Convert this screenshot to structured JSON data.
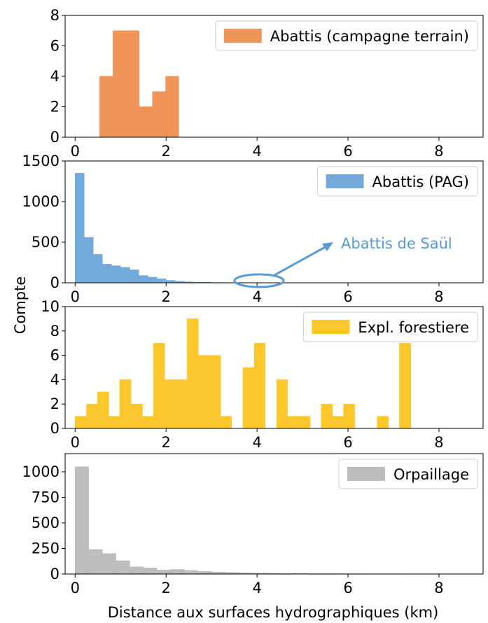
{
  "chart_data": [
    {
      "type": "histogram",
      "color": "#f0955a",
      "legend_loc": "upper right",
      "series_name": "Abattis (campagne terrain)",
      "bins": [
        0.54,
        0.83,
        1.12,
        1.41,
        1.7,
        1.99,
        2.28
      ],
      "counts": [
        4,
        7,
        7,
        2,
        3,
        4
      ],
      "xlim": [
        -0.22,
        8.97
      ],
      "xticks": [
        0,
        2,
        4,
        6,
        8
      ],
      "ylim": [
        0,
        8
      ],
      "yticks": [
        0,
        2,
        4,
        6,
        8
      ]
    },
    {
      "type": "histogram",
      "color": "#74a9dc",
      "legend_loc": "upper right",
      "series_name": "Abattis (PAG)",
      "ylabel": "Compte",
      "annotation": "Abattis de Saül",
      "bins": [
        0,
        0.2,
        0.4,
        0.6,
        0.8,
        1.0,
        1.2,
        1.4,
        1.6,
        1.8,
        2.0,
        2.2,
        2.4,
        2.6,
        2.8,
        3.0,
        3.2,
        3.4,
        3.6,
        3.8,
        4.0,
        4.2
      ],
      "counts": [
        1350,
        560,
        350,
        230,
        210,
        190,
        160,
        90,
        70,
        50,
        30,
        20,
        12,
        8,
        6,
        4,
        3,
        2,
        2,
        1,
        1
      ],
      "xlim": [
        -0.22,
        8.97
      ],
      "xticks": [
        0,
        2,
        4,
        6,
        8
      ],
      "ylim": [
        0,
        1500
      ],
      "yticks": [
        0,
        500,
        1000,
        1500
      ]
    },
    {
      "type": "histogram",
      "color": "#fcc72c",
      "legend_loc": "upper right",
      "series_name": "Expl. forestiere",
      "bins": [
        0,
        0.25,
        0.49,
        0.74,
        0.98,
        1.23,
        1.48,
        1.72,
        1.97,
        2.21,
        2.46,
        2.71,
        2.95,
        3.2,
        3.44,
        3.69,
        3.94,
        4.18,
        4.43,
        4.67,
        4.92,
        5.17,
        5.41,
        5.66,
        5.9,
        6.15,
        6.4,
        6.64,
        6.89,
        7.13,
        7.38
      ],
      "counts": [
        1,
        2,
        3,
        1,
        4,
        2,
        1,
        7,
        4,
        4,
        9,
        6,
        6,
        1,
        0,
        5,
        7,
        0,
        4,
        1,
        1,
        0,
        2,
        1,
        2,
        0,
        0,
        1,
        0,
        7
      ],
      "xlim": [
        -0.22,
        8.97
      ],
      "xticks": [
        0,
        2,
        4,
        6,
        8
      ],
      "ylim": [
        0,
        10
      ],
      "yticks": [
        0,
        2,
        4,
        6,
        8,
        10
      ]
    },
    {
      "type": "histogram",
      "color": "#bdbdbd",
      "legend_loc": "upper right",
      "series_name": "Orpaillage",
      "xlabel": "Distance aux surfaces hydrographiques (km)",
      "bins": [
        0,
        0.3,
        0.6,
        0.9,
        1.2,
        1.5,
        1.8,
        2.1,
        2.4,
        2.7,
        3.0,
        3.3,
        3.6,
        3.9,
        4.2,
        4.5,
        4.8,
        5.1,
        5.4,
        5.7,
        6.0,
        6.3,
        6.6,
        6.9,
        7.2,
        7.5,
        7.8,
        8.1,
        8.4,
        8.7
      ],
      "counts": [
        1050,
        240,
        200,
        130,
        70,
        60,
        40,
        45,
        35,
        25,
        20,
        15,
        12,
        10,
        8,
        6,
        5,
        4,
        4,
        3,
        3,
        2,
        2,
        2,
        1,
        1,
        1,
        1,
        1
      ],
      "xlim": [
        -0.22,
        8.97
      ],
      "xticks": [
        0,
        2,
        4,
        6,
        8
      ],
      "ylim": [
        0,
        1178
      ],
      "yticks": [
        0,
        250,
        500,
        750,
        1000
      ]
    }
  ]
}
